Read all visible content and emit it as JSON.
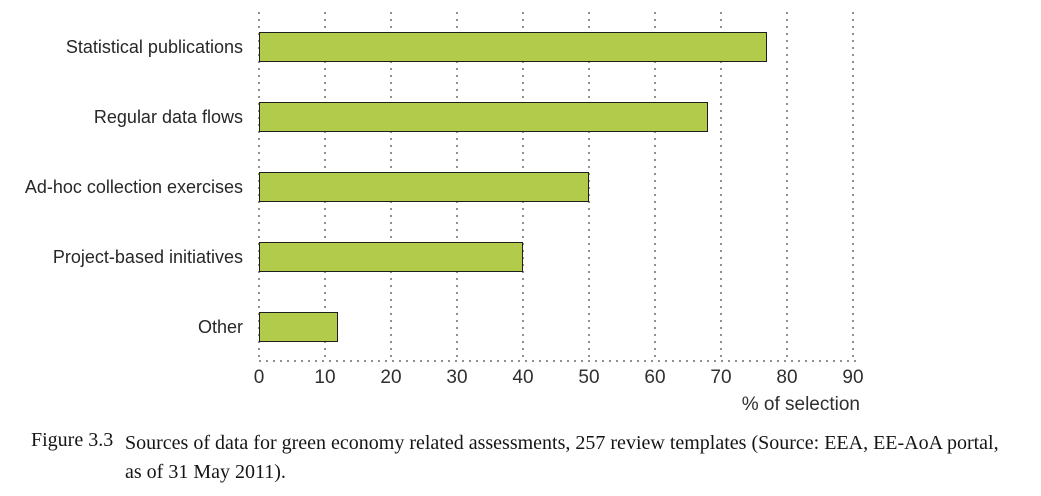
{
  "chart_data": {
    "type": "bar",
    "orientation": "horizontal",
    "title": "",
    "categories": [
      "Statistical publications",
      "Regular data flows",
      "Ad-hoc collection exercises",
      "Project-based initiatives",
      "Other"
    ],
    "values": [
      77,
      68,
      50,
      40,
      12
    ],
    "xlabel": "% of selection",
    "ylabel": "",
    "xticks": [
      0,
      10,
      20,
      30,
      40,
      50,
      60,
      70,
      80,
      90
    ],
    "xlim": [
      0,
      90
    ],
    "grid": "vertical dotted gridlines at each 10, dotted x and y axes",
    "legend": "none",
    "bar_color": "#b2cb4b",
    "bar_border_color": "#1e1e1e",
    "grid_color": "#8f8f8f"
  },
  "caption": {
    "label": "Figure 3.3",
    "text": "Sources of data for green economy related assessments, 257 review templates (Source: EEA, EE-AoA portal, as of 31 May 2011)."
  }
}
